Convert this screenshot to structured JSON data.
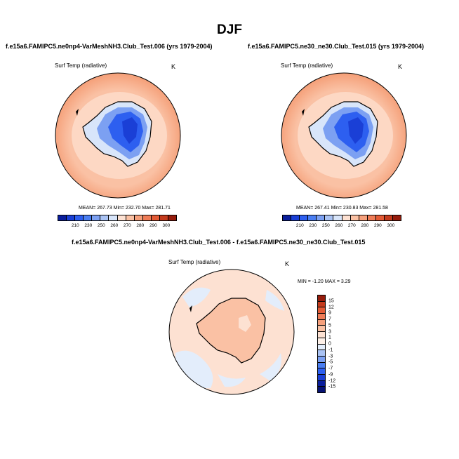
{
  "main_title": "DJF",
  "panels": [
    {
      "title": "f.e15a6.FAMIPC5.ne0np4-VarMeshNH3.Club_Test.006 (yrs 1979-2004)",
      "field_label": "Surf Temp (radiative)",
      "unit": "K",
      "stats": "MEAN= 267.73  Min= 232.70  Max= 281.71"
    },
    {
      "title": "f.e15a6.FAMIPC5.ne30_ne30.Club_Test.015 (yrs 1979-2004)",
      "field_label": "Surf Temp (radiative)",
      "unit": "K",
      "stats": "MEAN= 267.41  Min= 230.83  Max= 281.58"
    }
  ],
  "diff_panel": {
    "title": "f.e15a6.FAMIPC5.ne0np4-VarMeshNH3.Club_Test.006 - f.e15a6.FAMIPC5.ne30_ne30.Club_Test.015",
    "field_label": "Surf Temp (radiative)",
    "unit": "K",
    "minmax": "MIN =  -1.20 MAX =   3.29"
  },
  "colorbar": {
    "ticks": [
      "210",
      "230",
      "250",
      "260",
      "270",
      "280",
      "290",
      "300"
    ],
    "colors": [
      "#0a1e9c",
      "#1a3fd6",
      "#2d5ff0",
      "#4a7ef2",
      "#7ca0f2",
      "#aac3f4",
      "#d8e5fa",
      "#fde1d2",
      "#fac1a4",
      "#f6a07c",
      "#ef7c57",
      "#e35a35",
      "#c43a1c",
      "#961c0c"
    ]
  },
  "diff_colorbar": {
    "ticks": [
      "15",
      "12",
      "9",
      "7",
      "5",
      "3",
      "1",
      "0",
      "-1",
      "-3",
      "-5",
      "-7",
      "-9",
      "-12",
      "-15"
    ],
    "colors": [
      "#961c0c",
      "#c43a1c",
      "#e35a35",
      "#ef7c57",
      "#f6a07c",
      "#fac1a4",
      "#fde1d2",
      "#fdf0e8",
      "#e3edfb",
      "#aac3f4",
      "#7ca0f2",
      "#4a7ef2",
      "#2d5ff0",
      "#1a3fd6",
      "#0a1e9c",
      "#071273"
    ]
  }
}
